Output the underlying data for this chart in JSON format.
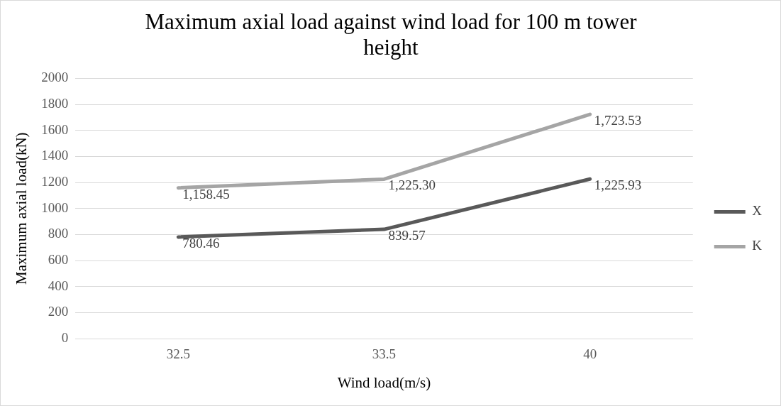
{
  "chart_data": {
    "type": "line",
    "title": "Maximum axial load against wind load for 100 m tower height",
    "xlabel": "Wind load(m/s)",
    "ylabel": "Maximum axial load(kN)",
    "categories": [
      "32.5",
      "33.5",
      "40"
    ],
    "series": [
      {
        "name": "X",
        "color": "#595959",
        "values": [
          780.46,
          839.57,
          1225.93
        ],
        "value_labels": [
          "780.46",
          "839.57",
          "1,225.93"
        ]
      },
      {
        "name": "K",
        "color": "#a5a5a5",
        "values": [
          1158.45,
          1225.3,
          1723.53
        ],
        "value_labels": [
          "1,158.45",
          "1,225.30",
          "1,723.53"
        ]
      }
    ],
    "ylim": [
      0,
      2000
    ],
    "yticks": [
      0,
      200,
      400,
      600,
      800,
      1000,
      1200,
      1400,
      1600,
      1800,
      2000
    ],
    "grid": "y",
    "legend": "right",
    "marker": "none",
    "line_style": "solid"
  }
}
